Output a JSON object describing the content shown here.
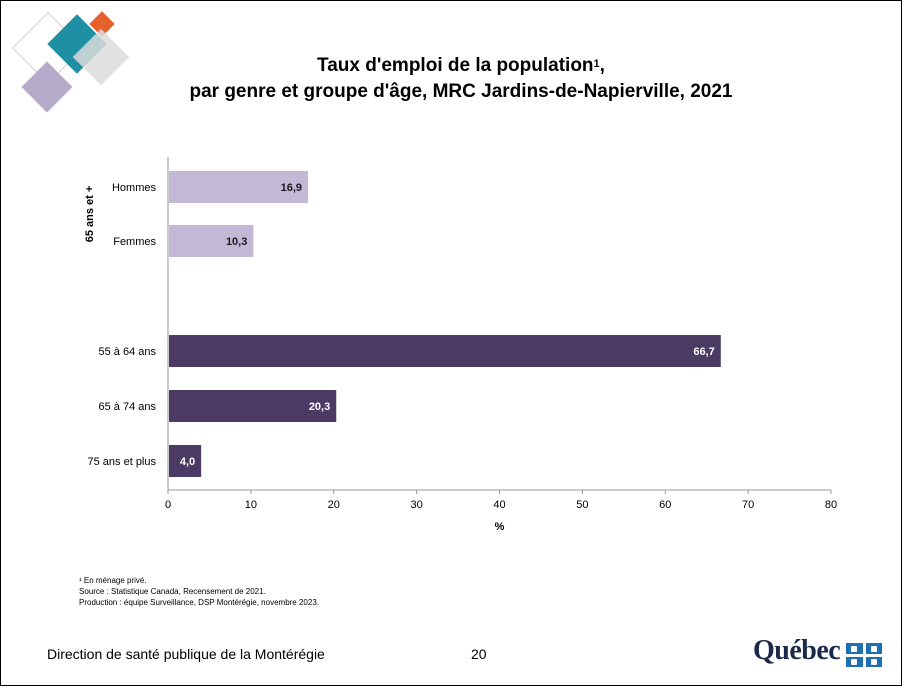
{
  "slide": {
    "title_line1": "Taux d'emploi de la population",
    "title_sup": "1",
    "title_line1_end": ",",
    "title_line2": "par genre et groupe d'âge, MRC Jardins-de-Napierville, 2021",
    "footnotes": [
      "¹ En ménage privé.",
      "Source : Statistique Canada, Recensement de 2021.",
      "Production : équipe Surveillance, DSP Montérégie, novembre 2023."
    ],
    "organization": "Direction de santé publique de la Montérégie",
    "page_number": "20",
    "logo_text": "Québec"
  },
  "colors": {
    "light_bar": "#c3b8d6",
    "dark_bar": "#4b3a63",
    "light_label": "#1a1a1a",
    "dark_label": "#ffffff",
    "deco_teal": "#1f8fa3",
    "deco_orange": "#e5602b",
    "deco_purple": "#b3abc9",
    "deco_gray": "#dcdcdc"
  },
  "chart_data": {
    "type": "bar",
    "orientation": "horizontal",
    "xlabel": "%",
    "xlim": [
      0,
      80
    ],
    "xticks": [
      0,
      10,
      20,
      30,
      40,
      50,
      60,
      70,
      80
    ],
    "grid": false,
    "group_label": "65 ans et +",
    "bars": [
      {
        "category": "Hommes",
        "value": 16.9,
        "label": "16,9",
        "shade": "light"
      },
      {
        "category": "Femmes",
        "value": 10.3,
        "label": "10,3",
        "shade": "light"
      },
      {
        "category": "55 à 64 ans",
        "value": 66.7,
        "label": "66,7",
        "shade": "dark"
      },
      {
        "category": "65 à 74 ans",
        "value": 20.3,
        "label": "20,3",
        "shade": "dark"
      },
      {
        "category": "75 ans et plus",
        "value": 4.0,
        "label": "4,0",
        "shade": "dark"
      }
    ]
  }
}
